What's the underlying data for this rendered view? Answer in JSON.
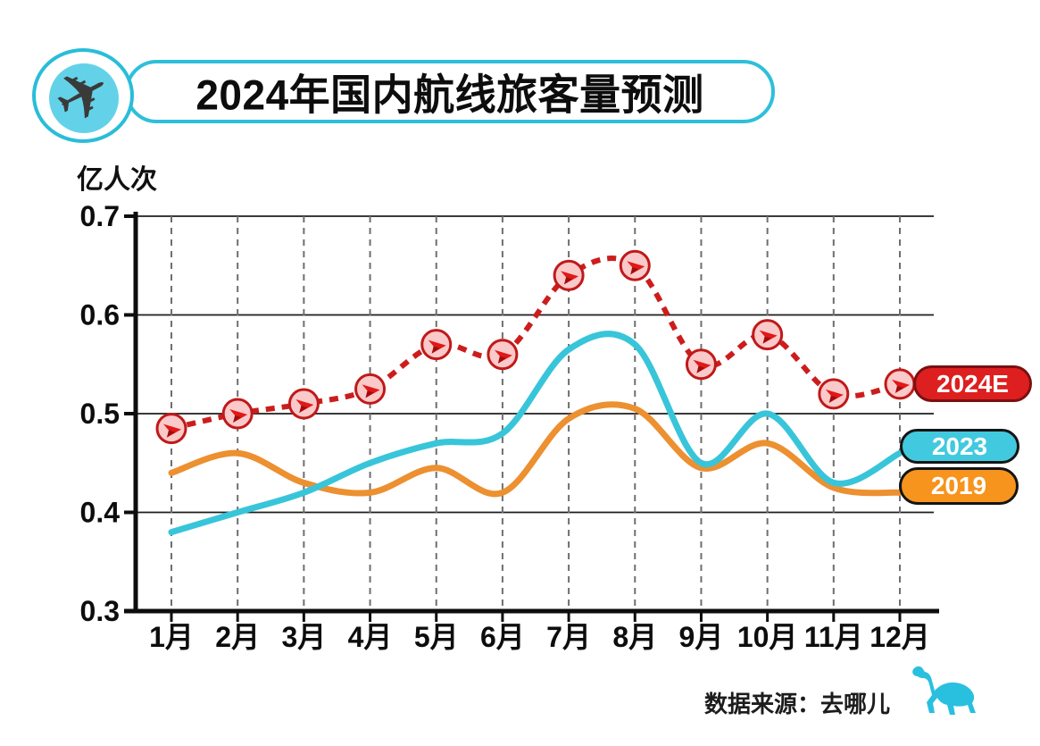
{
  "header": {
    "title": "2024年国内航线旅客量预测",
    "logo_icon": "airplane-icon",
    "pill_border_color": "#2ebfdb"
  },
  "chart_data": {
    "type": "line",
    "title": "2024年国内航线旅客量预测",
    "xlabel": "",
    "ylabel": "亿人次",
    "categories": [
      "1月",
      "2月",
      "3月",
      "4月",
      "5月",
      "6月",
      "7月",
      "8月",
      "9月",
      "10月",
      "11月",
      "12月"
    ],
    "yticks": [
      "0.7",
      "0.6",
      "0.5",
      "0.4",
      "0.3"
    ],
    "ylim": [
      0.3,
      0.7
    ],
    "grid": {
      "horizontal": "solid",
      "vertical": "dashed"
    },
    "legend_position": "right-of-line-ends",
    "series": [
      {
        "name": "2024E",
        "style": "dashed",
        "marker": "plane-circle",
        "color": "#cc1d1d",
        "values": [
          0.485,
          0.5,
          0.51,
          0.525,
          0.57,
          0.56,
          0.64,
          0.65,
          0.55,
          0.58,
          0.52,
          0.53
        ]
      },
      {
        "name": "2023",
        "style": "solid",
        "marker": "none",
        "color": "#38c5da",
        "values": [
          0.38,
          0.4,
          0.42,
          0.45,
          0.47,
          0.48,
          0.565,
          0.57,
          0.45,
          0.5,
          0.43,
          0.46
        ]
      },
      {
        "name": "2019",
        "style": "solid",
        "marker": "none",
        "color": "#ec9030",
        "values": [
          0.44,
          0.46,
          0.43,
          0.42,
          0.445,
          0.42,
          0.495,
          0.505,
          0.445,
          0.47,
          0.425,
          0.42
        ]
      }
    ]
  },
  "legend": {
    "items": [
      {
        "label": "2024E",
        "fill": "#de1f1f",
        "border": "#7a1010",
        "text_color": "#ffffff"
      },
      {
        "label": "2023",
        "fill": "#41c9df",
        "border": "#141414",
        "text_color": "#ffffff"
      },
      {
        "label": "2019",
        "fill": "#f7941d",
        "border": "#141414",
        "text_color": "#ffffff"
      }
    ]
  },
  "marker_style": {
    "fill": "#fac9c9",
    "ring": "#c01919",
    "glyph": "#e31717",
    "glyph_shadow": "#9c0e0e"
  },
  "footer": {
    "source_label": "数据来源：去哪儿",
    "logo_icon": "camel-icon",
    "logo_color": "#29c0e0"
  },
  "colors": {
    "background": "#ffffff",
    "grid_solid": "#1e1e1e",
    "grid_dashed": "#6f6f6f",
    "axis": "#0d0d0d",
    "title_text": "#0d0d0d"
  }
}
